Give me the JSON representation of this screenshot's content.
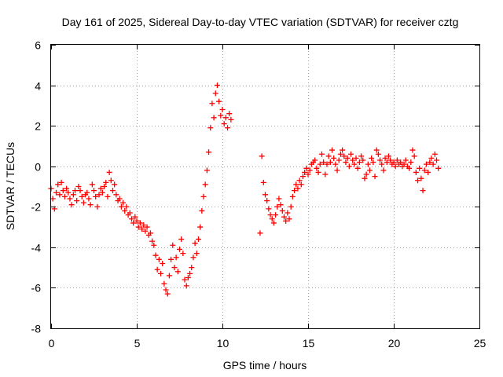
{
  "chart_data": {
    "type": "scatter",
    "title": "Day 161 of 2025, Sidereal Day-to-day VTEC variation (SDTVAR) for receiver cztg",
    "xlabel": "GPS time / hours",
    "ylabel": "SDTVAR / TECUs",
    "xlim": [
      0,
      25
    ],
    "ylim": [
      -8,
      6
    ],
    "x_ticks": [
      0,
      5,
      10,
      15,
      20,
      25
    ],
    "y_ticks": [
      -8,
      -6,
      -4,
      -2,
      0,
      2,
      4,
      6
    ],
    "x_tick_labels": [
      "0",
      "5",
      "10",
      "15",
      "20",
      "25"
    ],
    "y_tick_labels": [
      "-8",
      "-6",
      "-4",
      "-2",
      "0",
      "2",
      "4",
      "6"
    ],
    "grid": true,
    "marker": "+",
    "marker_color": "#ff0000",
    "series": [
      {
        "name": "SDTVAR",
        "points": [
          [
            0.0,
            -1.1
          ],
          [
            0.1,
            -1.6
          ],
          [
            0.2,
            -2.1
          ],
          [
            0.3,
            -1.3
          ],
          [
            0.4,
            -0.9
          ],
          [
            0.5,
            -1.4
          ],
          [
            0.6,
            -0.8
          ],
          [
            0.7,
            -1.2
          ],
          [
            0.8,
            -1.5
          ],
          [
            0.9,
            -1.1
          ],
          [
            1.0,
            -1.3
          ],
          [
            1.1,
            -1.6
          ],
          [
            1.2,
            -1.9
          ],
          [
            1.3,
            -1.4
          ],
          [
            1.4,
            -1.2
          ],
          [
            1.5,
            -1.7
          ],
          [
            1.6,
            -1.0
          ],
          [
            1.7,
            -1.2
          ],
          [
            1.8,
            -1.5
          ],
          [
            1.9,
            -1.8
          ],
          [
            2.0,
            -1.4
          ],
          [
            2.1,
            -1.3
          ],
          [
            2.2,
            -1.6
          ],
          [
            2.3,
            -1.9
          ],
          [
            2.4,
            -0.9
          ],
          [
            2.5,
            -1.2
          ],
          [
            2.6,
            -1.5
          ],
          [
            2.7,
            -2.0
          ],
          [
            2.8,
            -1.4
          ],
          [
            2.9,
            -1.1
          ],
          [
            3.0,
            -1.3
          ],
          [
            3.1,
            -1.0
          ],
          [
            3.2,
            -0.8
          ],
          [
            3.3,
            -1.5
          ],
          [
            3.4,
            -0.3
          ],
          [
            3.5,
            -0.7
          ],
          [
            3.6,
            -1.2
          ],
          [
            3.7,
            -0.9
          ],
          [
            3.8,
            -1.4
          ],
          [
            3.9,
            -1.7
          ],
          [
            4.0,
            -1.6
          ],
          [
            4.1,
            -2.0
          ],
          [
            4.2,
            -1.8
          ],
          [
            4.3,
            -2.2
          ],
          [
            4.4,
            -2.0
          ],
          [
            4.5,
            -2.4
          ],
          [
            4.6,
            -2.3
          ],
          [
            4.7,
            -2.6
          ],
          [
            4.8,
            -2.8
          ],
          [
            4.9,
            -2.5
          ],
          [
            5.0,
            -2.7
          ],
          [
            5.1,
            -3.0
          ],
          [
            5.2,
            -2.8
          ],
          [
            5.3,
            -3.1
          ],
          [
            5.4,
            -2.9
          ],
          [
            5.5,
            -3.2
          ],
          [
            5.6,
            -3.0
          ],
          [
            5.7,
            -3.4
          ],
          [
            5.8,
            -3.3
          ],
          [
            5.9,
            -3.7
          ],
          [
            6.0,
            -3.9
          ],
          [
            6.1,
            -4.4
          ],
          [
            6.2,
            -5.1
          ],
          [
            6.3,
            -4.6
          ],
          [
            6.4,
            -5.3
          ],
          [
            6.5,
            -4.8
          ],
          [
            6.6,
            -5.8
          ],
          [
            6.7,
            -6.1
          ],
          [
            6.8,
            -6.3
          ],
          [
            6.9,
            -5.4
          ],
          [
            7.0,
            -4.6
          ],
          [
            7.1,
            -3.9
          ],
          [
            7.2,
            -5.0
          ],
          [
            7.3,
            -4.5
          ],
          [
            7.4,
            -5.2
          ],
          [
            7.5,
            -4.1
          ],
          [
            7.6,
            -3.6
          ],
          [
            7.7,
            -4.3
          ],
          [
            7.8,
            -5.6
          ],
          [
            7.9,
            -5.9
          ],
          [
            8.0,
            -5.5
          ],
          [
            8.1,
            -5.3
          ],
          [
            8.2,
            -5.0
          ],
          [
            8.3,
            -4.5
          ],
          [
            8.4,
            -3.8
          ],
          [
            8.5,
            -4.3
          ],
          [
            8.6,
            -3.6
          ],
          [
            8.7,
            -3.0
          ],
          [
            8.8,
            -2.2
          ],
          [
            8.9,
            -1.5
          ],
          [
            9.0,
            -0.9
          ],
          [
            9.1,
            -0.2
          ],
          [
            9.2,
            0.7
          ],
          [
            9.3,
            1.9
          ],
          [
            9.4,
            3.1
          ],
          [
            9.5,
            2.4
          ],
          [
            9.6,
            3.6
          ],
          [
            9.7,
            4.0
          ],
          [
            9.8,
            3.2
          ],
          [
            9.9,
            2.5
          ],
          [
            10.0,
            2.8
          ],
          [
            10.1,
            2.1
          ],
          [
            10.2,
            2.4
          ],
          [
            10.3,
            1.9
          ],
          [
            10.4,
            2.6
          ],
          [
            10.5,
            2.3
          ],
          [
            12.2,
            -3.3
          ],
          [
            12.3,
            0.5
          ],
          [
            12.4,
            -0.8
          ],
          [
            12.5,
            -1.4
          ],
          [
            12.6,
            -1.7
          ],
          [
            12.7,
            -2.1
          ],
          [
            12.8,
            -2.4
          ],
          [
            12.9,
            -2.6
          ],
          [
            13.0,
            -2.8
          ],
          [
            13.1,
            -2.4
          ],
          [
            13.2,
            -2.0
          ],
          [
            13.3,
            -1.6
          ],
          [
            13.4,
            -1.9
          ],
          [
            13.5,
            -2.2
          ],
          [
            13.6,
            -2.5
          ],
          [
            13.7,
            -2.7
          ],
          [
            13.8,
            -2.3
          ],
          [
            13.9,
            -2.6
          ],
          [
            14.0,
            -2.0
          ],
          [
            14.1,
            -1.5
          ],
          [
            14.2,
            -1.2
          ],
          [
            14.3,
            -0.9
          ],
          [
            14.4,
            -1.1
          ],
          [
            14.5,
            -0.7
          ],
          [
            14.6,
            -0.9
          ],
          [
            14.7,
            -0.5
          ],
          [
            14.8,
            -0.3
          ],
          [
            14.9,
            -0.1
          ],
          [
            15.0,
            -0.4
          ],
          [
            15.1,
            -0.2
          ],
          [
            15.2,
            0.1
          ],
          [
            15.3,
            0.2
          ],
          [
            15.4,
            0.3
          ],
          [
            15.5,
            -0.1
          ],
          [
            15.6,
            -0.3
          ],
          [
            15.7,
            0.1
          ],
          [
            15.8,
            0.6
          ],
          [
            15.9,
            0.2
          ],
          [
            16.0,
            -0.4
          ],
          [
            16.1,
            0.1
          ],
          [
            16.2,
            0.5
          ],
          [
            16.3,
            0.2
          ],
          [
            16.4,
            0.8
          ],
          [
            16.5,
            0.4
          ],
          [
            16.6,
            0.1
          ],
          [
            16.7,
            -0.2
          ],
          [
            16.8,
            0.3
          ],
          [
            16.9,
            0.6
          ],
          [
            17.0,
            0.8
          ],
          [
            17.1,
            0.5
          ],
          [
            17.2,
            0.2
          ],
          [
            17.3,
            0.4
          ],
          [
            17.4,
            0.0
          ],
          [
            17.5,
            0.6
          ],
          [
            17.6,
            0.3
          ],
          [
            17.7,
            0.1
          ],
          [
            17.8,
            0.4
          ],
          [
            17.9,
            -0.1
          ],
          [
            18.0,
            0.2
          ],
          [
            18.1,
            0.5
          ],
          [
            18.2,
            0.3
          ],
          [
            18.3,
            -0.6
          ],
          [
            18.4,
            -0.4
          ],
          [
            18.5,
            0.1
          ],
          [
            18.6,
            -0.2
          ],
          [
            18.7,
            0.4
          ],
          [
            18.8,
            0.2
          ],
          [
            18.9,
            -0.5
          ],
          [
            19.0,
            0.8
          ],
          [
            19.1,
            0.6
          ],
          [
            19.2,
            0.3
          ],
          [
            19.3,
            0.1
          ],
          [
            19.4,
            -0.2
          ],
          [
            19.5,
            0.4
          ],
          [
            19.6,
            0.2
          ],
          [
            19.7,
            0.5
          ],
          [
            19.8,
            0.3
          ],
          [
            19.9,
            0.1
          ],
          [
            20.0,
            0.2
          ],
          [
            20.1,
            0.0
          ],
          [
            20.2,
            0.3
          ],
          [
            20.3,
            0.1
          ],
          [
            20.4,
            0.2
          ],
          [
            20.5,
            0.0
          ],
          [
            20.6,
            0.1
          ],
          [
            20.7,
            0.3
          ],
          [
            20.8,
            0.0
          ],
          [
            20.9,
            -0.1
          ],
          [
            21.0,
            0.2
          ],
          [
            21.1,
            0.8
          ],
          [
            21.2,
            0.5
          ],
          [
            21.3,
            -0.3
          ],
          [
            21.4,
            -0.7
          ],
          [
            21.5,
            -0.1
          ],
          [
            21.6,
            -0.6
          ],
          [
            21.7,
            -1.2
          ],
          [
            21.8,
            -0.2
          ],
          [
            21.9,
            0.1
          ],
          [
            22.0,
            -0.3
          ],
          [
            22.1,
            0.2
          ],
          [
            22.2,
            0.4
          ],
          [
            22.3,
            0.1
          ],
          [
            22.4,
            0.6
          ],
          [
            22.5,
            0.3
          ],
          [
            22.6,
            -0.1
          ]
        ]
      }
    ]
  }
}
